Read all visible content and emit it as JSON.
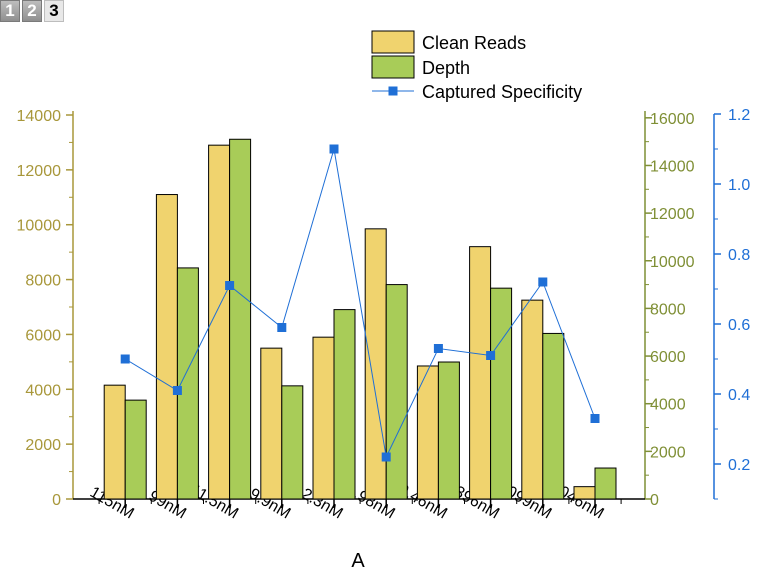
{
  "tabs": [
    {
      "label": "1",
      "active": false
    },
    {
      "label": "2",
      "active": false
    },
    {
      "label": "3",
      "active": true
    }
  ],
  "colors": {
    "clean_reads": "#f0d36e",
    "depth": "#a8cc58",
    "specificity": "#1f6fd6",
    "left_axis": "#a8973a",
    "right_axis1": "#7f8f35",
    "right_axis2": "#1f6fd6"
  },
  "chart_data": {
    "type": "bar",
    "xlabel": "A",
    "categories": [
      "115nM",
      "99nM",
      "11.5nM",
      "9.9nM",
      "2.3nM",
      "1.98nM",
      "0.46nM",
      "0.396nM",
      "0.099nM",
      "0.046nM"
    ],
    "series": [
      {
        "name": "Clean Reads",
        "type": "bar",
        "axis": "left",
        "values": [
          4150,
          11100,
          12900,
          5500,
          5900,
          9850,
          4850,
          9200,
          7250,
          450
        ]
      },
      {
        "name": "Depth",
        "type": "bar",
        "axis": "right1",
        "values": [
          4150,
          9700,
          15100,
          4750,
          7950,
          9000,
          5750,
          8850,
          6950,
          1300
        ]
      },
      {
        "name": "Captured Specificity",
        "type": "line",
        "axis": "right2",
        "values": [
          0.5,
          0.41,
          0.71,
          0.59,
          1.1,
          0.22,
          0.53,
          0.51,
          0.72,
          0.33
        ]
      }
    ],
    "axes": {
      "left": {
        "ylim": [
          0,
          14000
        ],
        "ticks": [
          0,
          2000,
          4000,
          6000,
          8000,
          10000,
          12000,
          14000
        ]
      },
      "right1": {
        "ylim": [
          0,
          17000
        ],
        "ticks": [
          0,
          2000,
          4000,
          6000,
          8000,
          10000,
          12000,
          14000,
          16000
        ]
      },
      "right2": {
        "ylim": [
          0.1,
          1.2
        ],
        "ticks": [
          0.2,
          0.4,
          0.6,
          0.8,
          1.0,
          1.2
        ]
      }
    },
    "legend": {
      "placement": "top-center",
      "entries": [
        "Clean Reads",
        "Depth",
        "Captured Specificity"
      ]
    },
    "grid": false
  }
}
